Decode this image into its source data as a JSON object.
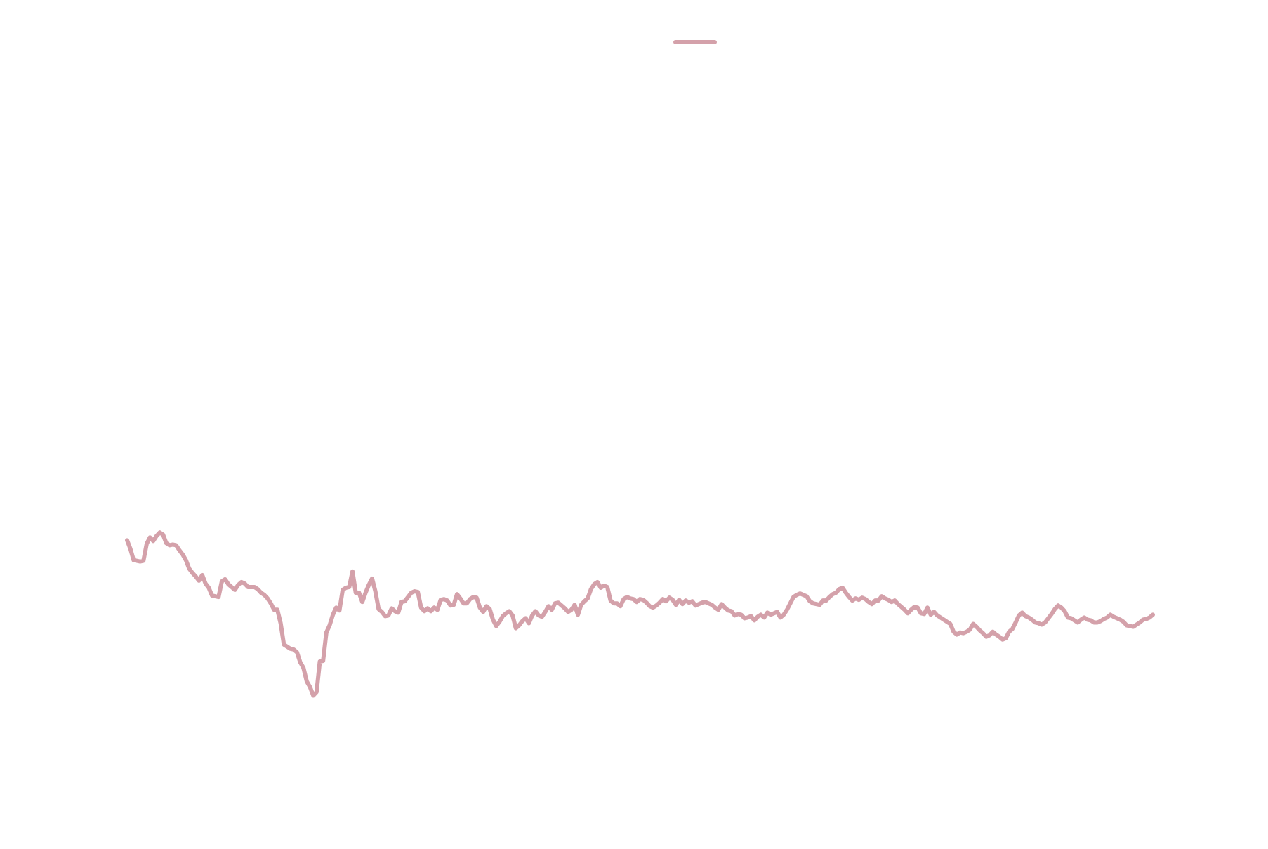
{
  "chart_data": {
    "type": "line",
    "title": "",
    "xlabel": "",
    "ylabel": "",
    "grid": false,
    "axes_visible": false,
    "legend": "top-center",
    "ylim": [
      0,
      1000
    ],
    "series": [
      {
        "color": "#d4a1aa",
        "values": [
          367,
          355,
          339,
          338,
          337,
          338,
          362,
          371,
          366,
          373,
          378,
          375,
          363,
          360,
          361,
          360,
          353,
          347,
          339,
          327,
          321,
          316,
          310,
          318,
          306,
          300,
          289,
          288,
          287,
          309,
          312,
          305,
          301,
          297,
          304,
          308,
          306,
          301,
          301,
          301,
          298,
          293,
          290,
          285,
          278,
          269,
          269,
          250,
          220,
          217,
          214,
          213,
          209,
          195,
          187,
          168,
          160,
          148,
          153,
          196,
          197,
          237,
          247,
          262,
          272,
          268,
          297,
          300,
          301,
          323,
          293,
          293,
          280,
          293,
          304,
          313,
          295,
          270,
          266,
          260,
          261,
          271,
          267,
          265,
          280,
          281,
          287,
          293,
          295,
          294,
          272,
          267,
          271,
          267,
          272,
          269,
          283,
          284,
          282,
          275,
          276,
          291,
          285,
          278,
          278,
          284,
          287,
          286,
          272,
          266,
          274,
          270,
          255,
          246,
          252,
          260,
          264,
          267,
          261,
          243,
          247,
          253,
          257,
          250,
          261,
          267,
          261,
          259,
          266,
          274,
          269,
          278,
          279,
          275,
          271,
          266,
          269,
          276,
          262,
          276,
          281,
          285,
          298,
          305,
          308,
          300,
          303,
          301,
          282,
          278,
          278,
          274,
          284,
          287,
          285,
          284,
          280,
          284,
          283,
          279,
          274,
          272,
          275,
          279,
          284,
          281,
          286,
          283,
          276,
          283,
          277,
          282,
          279,
          281,
          275,
          277,
          279,
          280,
          278,
          276,
          272,
          269,
          277,
          272,
          268,
          267,
          261,
          263,
          262,
          257,
          258,
          260,
          254,
          259,
          262,
          258,
          265,
          262,
          264,
          266,
          258,
          262,
          269,
          278,
          287,
          290,
          292,
          290,
          288,
          281,
          278,
          277,
          276,
          282,
          282,
          287,
          291,
          293,
          298,
          300,
          293,
          287,
          282,
          285,
          283,
          286,
          284,
          280,
          277,
          282,
          282,
          288,
          285,
          283,
          280,
          282,
          277,
          273,
          269,
          264,
          269,
          273,
          272,
          264,
          263,
          272,
          262,
          266,
          261,
          258,
          255,
          252,
          249,
          238,
          234,
          237,
          236,
          238,
          241,
          249,
          245,
          240,
          236,
          231,
          233,
          238,
          234,
          231,
          227,
          229,
          238,
          242,
          251,
          261,
          265,
          260,
          258,
          255,
          251,
          250,
          248,
          251,
          257,
          263,
          270,
          275,
          272,
          267,
          258,
          257,
          254,
          251,
          255,
          258,
          255,
          254,
          251,
          251,
          253,
          256,
          258,
          262,
          259,
          257,
          255,
          252,
          247,
          246,
          245,
          248,
          251,
          255,
          256,
          258,
          262
        ]
      }
    ]
  }
}
